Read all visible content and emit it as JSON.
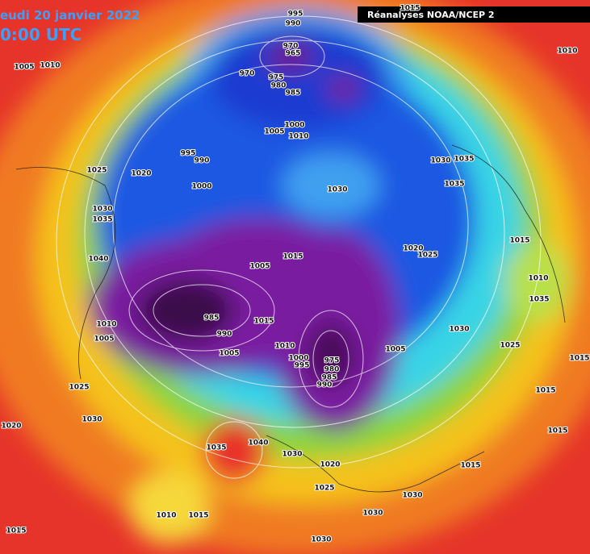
{
  "header": {
    "date": "eudi 20 janvier 2022",
    "time": "0:00 UTC",
    "source": "Réanalyses NOAA/NCEP 2"
  },
  "isobar_labels": [
    "995",
    "990",
    "1015",
    "970",
    "965",
    "970",
    "975",
    "980",
    "985",
    "1005",
    "1010",
    "1010",
    "1000",
    "1005",
    "1010",
    "995",
    "990",
    "1030",
    "1035",
    "1025",
    "1020",
    "1000",
    "1030",
    "1035",
    "1030",
    "1035",
    "1015",
    "1020",
    "1025",
    "1005",
    "1015",
    "1040",
    "1010",
    "1035",
    "985",
    "1015",
    "1010",
    "990",
    "1005",
    "1030",
    "1010",
    "975",
    "1000",
    "995",
    "980",
    "985",
    "990",
    "1005",
    "1025",
    "1015",
    "1025",
    "1015",
    "1030",
    "1020",
    "1015",
    "1035",
    "1040",
    "1030",
    "1020",
    "1015",
    "1025",
    "1030",
    "1030",
    "1010",
    "1015",
    "1015",
    "1030",
    "1005"
  ]
}
